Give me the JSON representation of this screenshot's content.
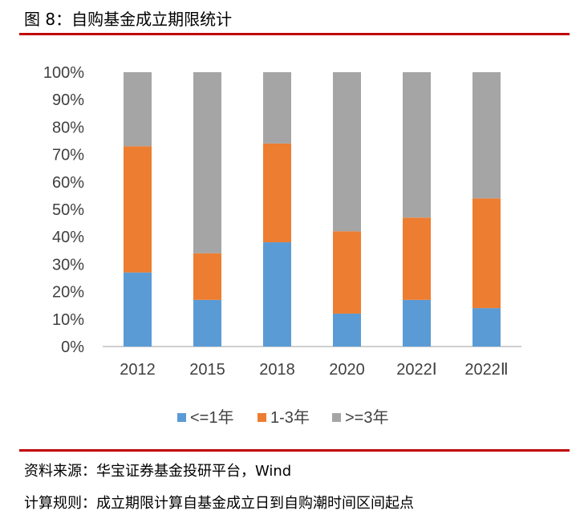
{
  "figure_title": "图 8：自购基金成立期限统计",
  "footnotes": {
    "source": "资料来源：华宝证券基金投研平台，Wind",
    "rule": "计算规则：成立期限计算自基金成立日到自购潮时间区间起点"
  },
  "colors": {
    "series_1": "#5b9bd5",
    "series_2": "#ed7d31",
    "series_3": "#a5a5a5",
    "rule": "#c00000",
    "axis": "#bfbfbf",
    "text": "#404040"
  },
  "chart_data": {
    "type": "bar",
    "stacked": true,
    "percent": true,
    "categories": [
      "2012",
      "2015",
      "2018",
      "2020",
      "2022Ⅰ",
      "2022Ⅱ"
    ],
    "series": [
      {
        "name": "<=1年",
        "values": [
          27,
          17,
          38,
          12,
          17,
          14
        ]
      },
      {
        "name": "1-3年",
        "values": [
          46,
          17,
          36,
          30,
          30,
          40
        ]
      },
      {
        "name": ">=3年",
        "values": [
          27,
          66,
          26,
          58,
          53,
          46
        ]
      }
    ],
    "y_ticks": [
      "0%",
      "10%",
      "20%",
      "30%",
      "40%",
      "50%",
      "60%",
      "70%",
      "80%",
      "90%",
      "100%"
    ],
    "ylim": [
      0,
      100
    ],
    "grid": false,
    "legend_position": "bottom"
  }
}
